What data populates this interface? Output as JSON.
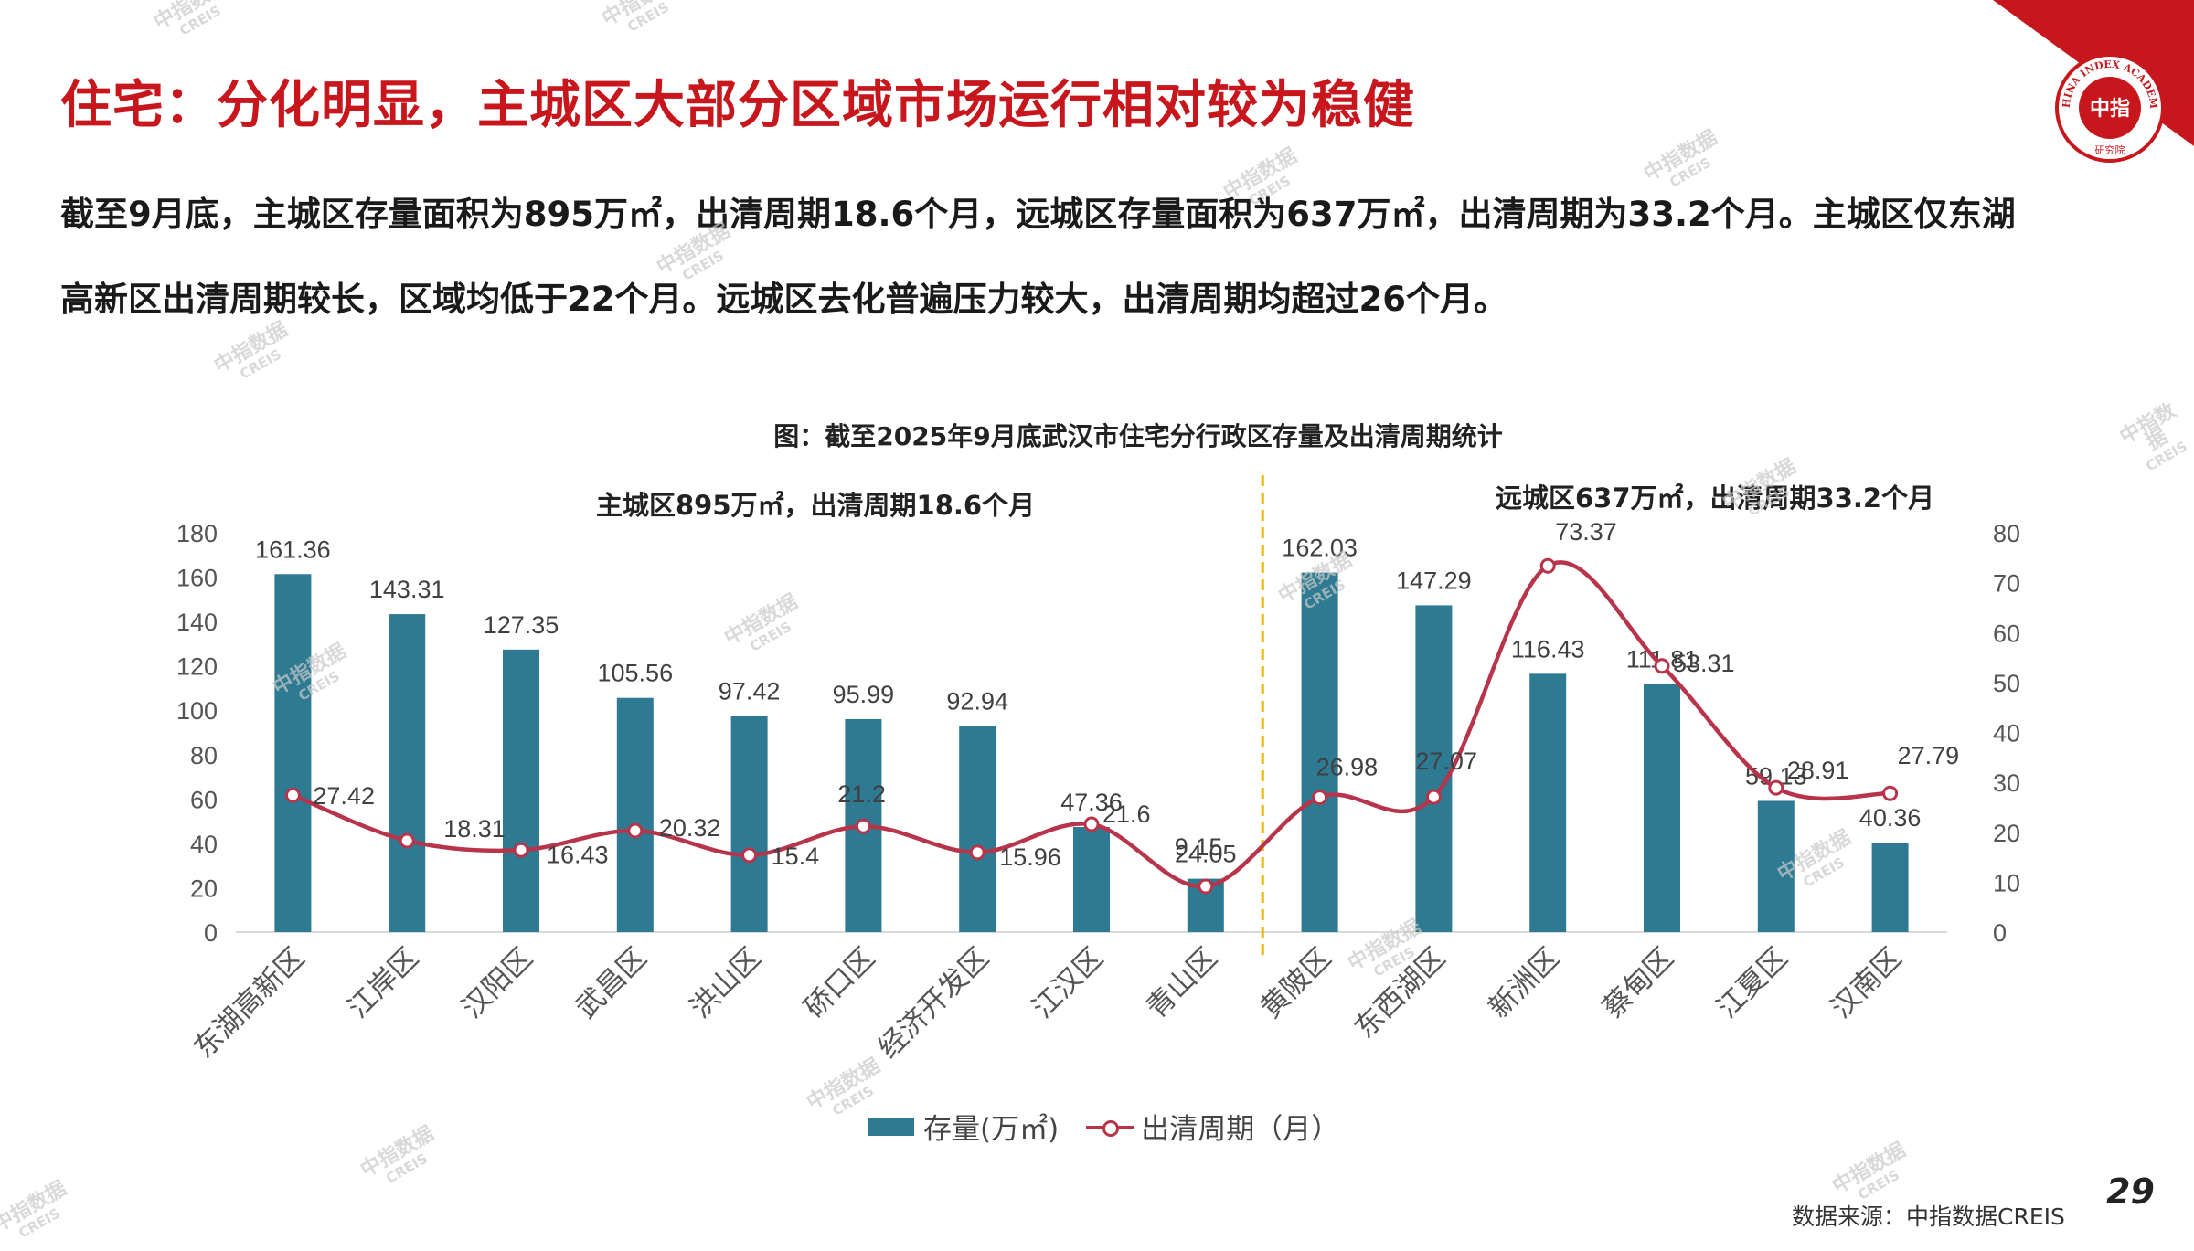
{
  "page": {
    "title": "住宅：分化明显，主城区大部分区域市场运行相对较为稳健",
    "summary_line1": "截至9月底，主城区存量面积为895万㎡，出清周期18.6个月，远城区存量面积为637万㎡，出清周期为33.2个月。主城区仅东湖",
    "summary_line2": "高新区出清周期较长，区域均低于22个月。远城区去化普遍压力较大，出清周期均超过26个月。",
    "source": "数据来源：中指数据CREIS",
    "page_number": "29",
    "watermark_main": "中指数据",
    "watermark_sub": "CREIS",
    "logo_top": "CHINA INDEX ACADEMY",
    "logo_center": "中指",
    "logo_bottom": "研究院"
  },
  "chart_data": {
    "type": "bar",
    "title": "图：截至2025年9月底武汉市住宅分行政区存量及出清周期统计",
    "annotations": [
      "主城区895万㎡，出清周期18.6个月",
      "远城区637万㎡，出清周期33.2个月"
    ],
    "categories": [
      "东湖高新区",
      "江岸区",
      "汉阳区",
      "武昌区",
      "洪山区",
      "硚口区",
      "经济开发区",
      "江汉区",
      "青山区",
      "黄陂区",
      "东西湖区",
      "新洲区",
      "蔡甸区",
      "江夏区",
      "汉南区"
    ],
    "series": [
      {
        "name": "存量(万㎡)",
        "type": "bar",
        "axis": "left",
        "color": "#2e7a92",
        "values": [
          161.36,
          143.31,
          127.35,
          105.56,
          97.42,
          95.99,
          92.94,
          47.36,
          24.05,
          162.03,
          147.29,
          116.43,
          111.81,
          59.13,
          40.36
        ]
      },
      {
        "name": "出清周期（月）",
        "type": "line",
        "axis": "right",
        "color": "#b8344a",
        "values": [
          27.42,
          18.31,
          16.43,
          20.32,
          15.4,
          21.2,
          15.96,
          21.6,
          9.15,
          26.98,
          27.07,
          73.37,
          53.31,
          28.91,
          27.79
        ]
      }
    ],
    "y_left": {
      "min": 0,
      "max": 180,
      "ticks": [
        0,
        20,
        40,
        60,
        80,
        100,
        120,
        140,
        160,
        180
      ]
    },
    "y_right": {
      "min": 0,
      "max": 80,
      "ticks": [
        0,
        10,
        20,
        30,
        40,
        50,
        60,
        70,
        80
      ]
    },
    "divider_after_category": "青山区",
    "divider_color": "#f0b400",
    "legend_position": "bottom",
    "grid": false
  }
}
